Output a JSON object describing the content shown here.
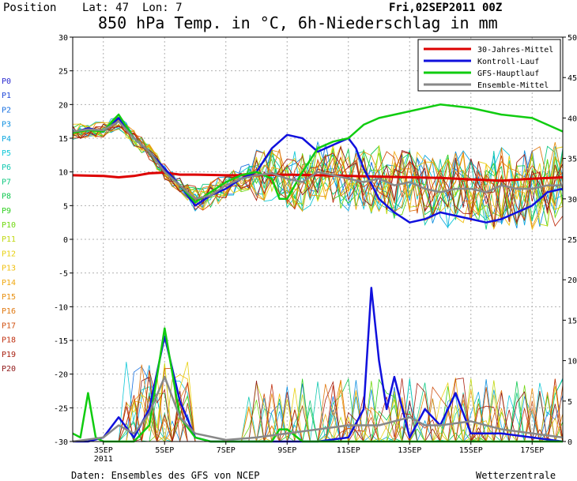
{
  "header": {
    "position_label": "Position",
    "lat_label": "Lat: 47",
    "lon_label": "Lon: 7",
    "run_label": "Fri,02SEP2011 00Z",
    "title": "850 hPa Temp. in °C, 6h-Niederschlag in mm"
  },
  "footer": {
    "source": "Daten: Ensembles des GFS von NCEP",
    "brand": "Wetterzentrale"
  },
  "members": [
    {
      "name": "P0",
      "color": "#2a2ad0"
    },
    {
      "name": "P1",
      "color": "#2048d8"
    },
    {
      "name": "P2",
      "color": "#1870e0"
    },
    {
      "name": "P3",
      "color": "#1090e0"
    },
    {
      "name": "P4",
      "color": "#10a8e0"
    },
    {
      "name": "P5",
      "color": "#10c8d8"
    },
    {
      "name": "P6",
      "color": "#10c8b0"
    },
    {
      "name": "P7",
      "color": "#10c880"
    },
    {
      "name": "P8",
      "color": "#10c850"
    },
    {
      "name": "P9",
      "color": "#30d020"
    },
    {
      "name": "P10",
      "color": "#70d810"
    },
    {
      "name": "P11",
      "color": "#c0d810"
    },
    {
      "name": "P12",
      "color": "#e8d010"
    },
    {
      "name": "P13",
      "color": "#f0c010"
    },
    {
      "name": "P14",
      "color": "#f0a810"
    },
    {
      "name": "P15",
      "color": "#e89010"
    },
    {
      "name": "P16",
      "color": "#e07810"
    },
    {
      "name": "P17",
      "color": "#d05010"
    },
    {
      "name": "P18",
      "color": "#c03010"
    },
    {
      "name": "P19",
      "color": "#a82010"
    },
    {
      "name": "P20",
      "color": "#901818"
    }
  ],
  "chart_data": {
    "type": "line",
    "x_unit": "days",
    "xlim": [
      0,
      16
    ],
    "ylim_left": [
      -30,
      30
    ],
    "ylim_right": [
      0,
      50
    ],
    "yticks_left": [
      -30,
      -25,
      -20,
      -15,
      -10,
      -5,
      0,
      5,
      10,
      15,
      20,
      25,
      30
    ],
    "yticks_right": [
      0,
      5,
      10,
      15,
      20,
      25,
      30,
      35,
      40,
      45,
      50
    ],
    "x_ticks": [
      {
        "x": 1.0,
        "label": "3SEP",
        "sub": "2011"
      },
      {
        "x": 3.0,
        "label": "5SEP",
        "sub": ""
      },
      {
        "x": 5.0,
        "label": "7SEP",
        "sub": ""
      },
      {
        "x": 7.0,
        "label": "9SEP",
        "sub": ""
      },
      {
        "x": 9.0,
        "label": "11SEP",
        "sub": ""
      },
      {
        "x": 11.0,
        "label": "13SEP",
        "sub": ""
      },
      {
        "x": 13.0,
        "label": "15SEP",
        "sub": ""
      },
      {
        "x": 15.0,
        "label": "17SEP",
        "sub": ""
      }
    ],
    "grid": true,
    "legend_position": "top-right",
    "legend": [
      {
        "label": "30-Jahres-Mittel",
        "color": "#dd0000"
      },
      {
        "label": "Kontroll-Lauf",
        "color": "#1010dd"
      },
      {
        "label": "GFS-Hauptlauf",
        "color": "#10cc10"
      },
      {
        "label": "Ensemble-Mittel",
        "color": "#888888"
      }
    ],
    "series": [
      {
        "name": "30-Jahres-Mittel",
        "color": "#dd0000",
        "width": 3,
        "values": [
          [
            0,
            9.5
          ],
          [
            1,
            9.4
          ],
          [
            1.5,
            9.2
          ],
          [
            2,
            9.4
          ],
          [
            2.5,
            9.8
          ],
          [
            3,
            9.9
          ],
          [
            3.5,
            9.6
          ],
          [
            4,
            9.6
          ],
          [
            5,
            9.5
          ],
          [
            6,
            9.5
          ],
          [
            7,
            9.6
          ],
          [
            8,
            9.5
          ],
          [
            9,
            9.4
          ],
          [
            10,
            9.3
          ],
          [
            11,
            9.2
          ],
          [
            12,
            9.1
          ],
          [
            13,
            8.9
          ],
          [
            14,
            8.7
          ],
          [
            15,
            9.0
          ],
          [
            16,
            9.2
          ]
        ]
      },
      {
        "name": "Kontroll-Lauf",
        "color": "#1010dd",
        "width": 2.5,
        "values": [
          [
            0,
            15.8
          ],
          [
            0.5,
            16.5
          ],
          [
            1,
            16
          ],
          [
            1.5,
            18
          ],
          [
            2,
            15
          ],
          [
            2.5,
            13
          ],
          [
            3,
            10.5
          ],
          [
            3.5,
            8
          ],
          [
            4,
            5
          ],
          [
            4.5,
            6.5
          ],
          [
            5,
            7.5
          ],
          [
            5.5,
            9
          ],
          [
            6,
            10
          ],
          [
            6.5,
            13.5
          ],
          [
            7,
            15.5
          ],
          [
            7.5,
            15
          ],
          [
            8,
            13
          ],
          [
            8.5,
            14
          ],
          [
            9,
            15
          ],
          [
            9.25,
            13.5
          ],
          [
            9.5,
            10.5
          ],
          [
            10,
            6
          ],
          [
            10.5,
            4
          ],
          [
            11,
            2.5
          ],
          [
            11.5,
            3
          ],
          [
            12,
            4
          ],
          [
            12.5,
            3.5
          ],
          [
            13,
            3
          ],
          [
            13.5,
            2.5
          ],
          [
            14,
            3
          ],
          [
            14.5,
            4
          ],
          [
            15,
            5
          ],
          [
            15.5,
            7
          ],
          [
            16,
            7.5
          ]
        ]
      },
      {
        "name": "GFS-Hauptlauf",
        "color": "#10cc10",
        "width": 2.5,
        "values": [
          [
            0,
            15.8
          ],
          [
            0.5,
            16.2
          ],
          [
            1,
            16
          ],
          [
            1.5,
            18.5
          ],
          [
            2,
            15
          ],
          [
            2.5,
            13
          ],
          [
            3,
            10
          ],
          [
            3.5,
            8
          ],
          [
            4,
            5.5
          ],
          [
            4.5,
            7
          ],
          [
            5,
            8.5
          ],
          [
            5.5,
            9.5
          ],
          [
            6,
            10
          ],
          [
            6.5,
            9
          ],
          [
            6.75,
            6
          ],
          [
            7,
            6
          ],
          [
            7.5,
            10
          ],
          [
            8,
            13.5
          ],
          [
            8.5,
            14.5
          ],
          [
            9,
            15
          ],
          [
            9.5,
            17
          ],
          [
            10,
            18
          ],
          [
            11,
            19
          ],
          [
            12,
            20
          ],
          [
            13,
            19.5
          ],
          [
            14,
            18.5
          ],
          [
            15,
            18
          ],
          [
            16,
            16
          ]
        ]
      },
      {
        "name": "Ensemble-Mittel",
        "color": "#888888",
        "width": 2.5,
        "values": [
          [
            0,
            16
          ],
          [
            0.5,
            16.3
          ],
          [
            1,
            16.2
          ],
          [
            1.5,
            17.5
          ],
          [
            2,
            15
          ],
          [
            2.5,
            13
          ],
          [
            3,
            10
          ],
          [
            3.5,
            8
          ],
          [
            4,
            6
          ],
          [
            4.5,
            6.5
          ],
          [
            5,
            8
          ],
          [
            5.5,
            9
          ],
          [
            6,
            9.5
          ],
          [
            6.5,
            9.8
          ],
          [
            7,
            9
          ],
          [
            7.5,
            8.5
          ],
          [
            8,
            10
          ],
          [
            8.5,
            9.5
          ],
          [
            9,
            9
          ],
          [
            9.5,
            8.5
          ],
          [
            10,
            9
          ],
          [
            10.5,
            8
          ],
          [
            11,
            8.5
          ],
          [
            11.5,
            7.5
          ],
          [
            12,
            7
          ],
          [
            12.5,
            7.5
          ],
          [
            13,
            7.5
          ],
          [
            13.5,
            7
          ],
          [
            14,
            8
          ],
          [
            14.5,
            7.5
          ],
          [
            15,
            7.5
          ],
          [
            15.5,
            8
          ],
          [
            16,
            8
          ]
        ]
      }
    ],
    "precip_series": [
      {
        "name": "Kontroll-Lauf",
        "color": "#1010dd",
        "width": 2.5,
        "values": [
          [
            0,
            0
          ],
          [
            0.5,
            0
          ],
          [
            1,
            0.5
          ],
          [
            1.5,
            3
          ],
          [
            2,
            0.5
          ],
          [
            2.5,
            4
          ],
          [
            3,
            13
          ],
          [
            3.5,
            5
          ],
          [
            4,
            0.5
          ],
          [
            4.5,
            0
          ],
          [
            5,
            0
          ],
          [
            6,
            0
          ],
          [
            7,
            0
          ],
          [
            8,
            0
          ],
          [
            9,
            0.5
          ],
          [
            9.5,
            4
          ],
          [
            9.75,
            19
          ],
          [
            10,
            10
          ],
          [
            10.25,
            4
          ],
          [
            10.5,
            8
          ],
          [
            11,
            0.5
          ],
          [
            11.5,
            4
          ],
          [
            12,
            2
          ],
          [
            12.5,
            6
          ],
          [
            13,
            1
          ],
          [
            14,
            1
          ],
          [
            15,
            0.5
          ],
          [
            16,
            0
          ]
        ]
      },
      {
        "name": "GFS-Hauptlauf",
        "color": "#10cc10",
        "width": 2.5,
        "values": [
          [
            0,
            1
          ],
          [
            0.25,
            0.5
          ],
          [
            0.5,
            6
          ],
          [
            0.75,
            0.5
          ],
          [
            1,
            0
          ],
          [
            1.5,
            0
          ],
          [
            2,
            0
          ],
          [
            2.5,
            2
          ],
          [
            3,
            14
          ],
          [
            3.5,
            3
          ],
          [
            4,
            0.5
          ],
          [
            4.5,
            0
          ],
          [
            6,
            0
          ],
          [
            6.5,
            0
          ],
          [
            6.75,
            1.5
          ],
          [
            7,
            1.5
          ],
          [
            7.5,
            0
          ],
          [
            16,
            0
          ]
        ]
      },
      {
        "name": "Ensemble-Mittel",
        "color": "#888888",
        "width": 2.5,
        "values": [
          [
            0,
            0
          ],
          [
            1,
            0.5
          ],
          [
            1.5,
            2
          ],
          [
            2,
            1
          ],
          [
            2.5,
            3.5
          ],
          [
            3,
            8
          ],
          [
            3.5,
            3
          ],
          [
            4,
            1
          ],
          [
            5,
            0.2
          ],
          [
            6,
            0.5
          ],
          [
            7,
            1
          ],
          [
            8,
            1.5
          ],
          [
            9,
            2
          ],
          [
            10,
            2
          ],
          [
            11,
            3
          ],
          [
            11.5,
            2
          ],
          [
            12,
            2
          ],
          [
            13,
            2.5
          ],
          [
            14,
            1.5
          ],
          [
            15,
            1
          ],
          [
            16,
            0.5
          ]
        ]
      }
    ]
  }
}
